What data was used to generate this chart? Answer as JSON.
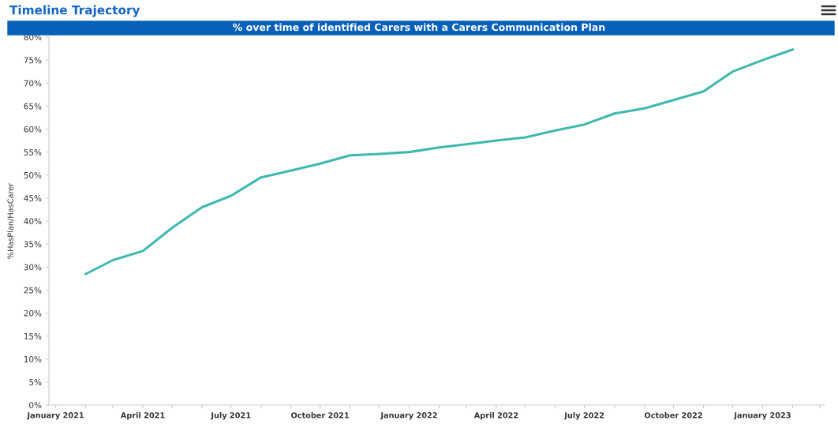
{
  "chart_data": {
    "type": "line",
    "title": "Timeline Trajectory",
    "subtitle": "% over time of identified Carers with a Carers Communication Plan",
    "ylabel": "%HasPlan/HasCarer",
    "x": [
      "2021-02",
      "2021-03",
      "2021-04",
      "2021-05",
      "2021-06",
      "2021-07",
      "2021-08",
      "2021-09",
      "2021-10",
      "2021-11",
      "2021-12",
      "2022-01",
      "2022-02",
      "2022-03",
      "2022-04",
      "2022-05",
      "2022-06",
      "2022-07",
      "2022-08",
      "2022-09",
      "2022-10",
      "2022-11",
      "2022-12",
      "2023-01",
      "2023-02"
    ],
    "series": [
      {
        "color": "#3fb8af",
        "values": [
          28.5,
          31.5,
          33.5,
          38.5,
          43,
          45.5,
          49.5,
          51,
          52.5,
          54.3,
          54.6,
          55,
          56,
          56.7,
          57.5,
          58.2,
          59.7,
          61,
          63.4,
          64.5,
          66.3,
          68.2,
          72.5,
          75,
          77.3
        ]
      }
    ],
    "xlim": [
      "2020-12-25",
      "2023-03-06"
    ],
    "xticks": [
      {
        "value": "2021-01",
        "label": "January 2021"
      },
      {
        "value": "2021-02",
        "label": null
      },
      {
        "value": "2021-03",
        "label": null
      },
      {
        "value": "2021-04",
        "label": "April 2021"
      },
      {
        "value": "2021-05",
        "label": null
      },
      {
        "value": "2021-06",
        "label": null
      },
      {
        "value": "2021-07",
        "label": "July 2021"
      },
      {
        "value": "2021-08",
        "label": null
      },
      {
        "value": "2021-09",
        "label": null
      },
      {
        "value": "2021-10",
        "label": "October 2021"
      },
      {
        "value": "2021-11",
        "label": null
      },
      {
        "value": "2021-12",
        "label": null
      },
      {
        "value": "2022-01",
        "label": "January 2022"
      },
      {
        "value": "2022-02",
        "label": null
      },
      {
        "value": "2022-03",
        "label": null
      },
      {
        "value": "2022-04",
        "label": "April 2022"
      },
      {
        "value": "2022-05",
        "label": null
      },
      {
        "value": "2022-06",
        "label": null
      },
      {
        "value": "2022-07",
        "label": "July 2022"
      },
      {
        "value": "2022-08",
        "label": null
      },
      {
        "value": "2022-09",
        "label": null
      },
      {
        "value": "2022-10",
        "label": "October 2022"
      },
      {
        "value": "2022-11",
        "label": null
      },
      {
        "value": "2022-12",
        "label": null
      },
      {
        "value": "2023-01",
        "label": "January 2023"
      },
      {
        "value": "2023-02",
        "label": null
      },
      {
        "value": "2023-03",
        "label": null
      }
    ],
    "ylim": [
      0,
      80
    ],
    "yticks": [
      {
        "value": 0,
        "label": "0%"
      },
      {
        "value": 5,
        "label": "5%"
      },
      {
        "value": 10,
        "label": "10%"
      },
      {
        "value": 15,
        "label": "15%"
      },
      {
        "value": 20,
        "label": "20%"
      },
      {
        "value": 25,
        "label": "25%"
      },
      {
        "value": 30,
        "label": "30%"
      },
      {
        "value": 35,
        "label": "35%"
      },
      {
        "value": 40,
        "label": "40%"
      },
      {
        "value": 45,
        "label": "45%"
      },
      {
        "value": 50,
        "label": "50%"
      },
      {
        "value": 55,
        "label": "55%"
      },
      {
        "value": 60,
        "label": "60%"
      },
      {
        "value": 65,
        "label": "65%"
      },
      {
        "value": 70,
        "label": "70%"
      },
      {
        "value": 75,
        "label": "75%"
      },
      {
        "value": 80,
        "label": "80%"
      }
    ],
    "grid": false,
    "marker": "none",
    "line_style": "solid"
  }
}
